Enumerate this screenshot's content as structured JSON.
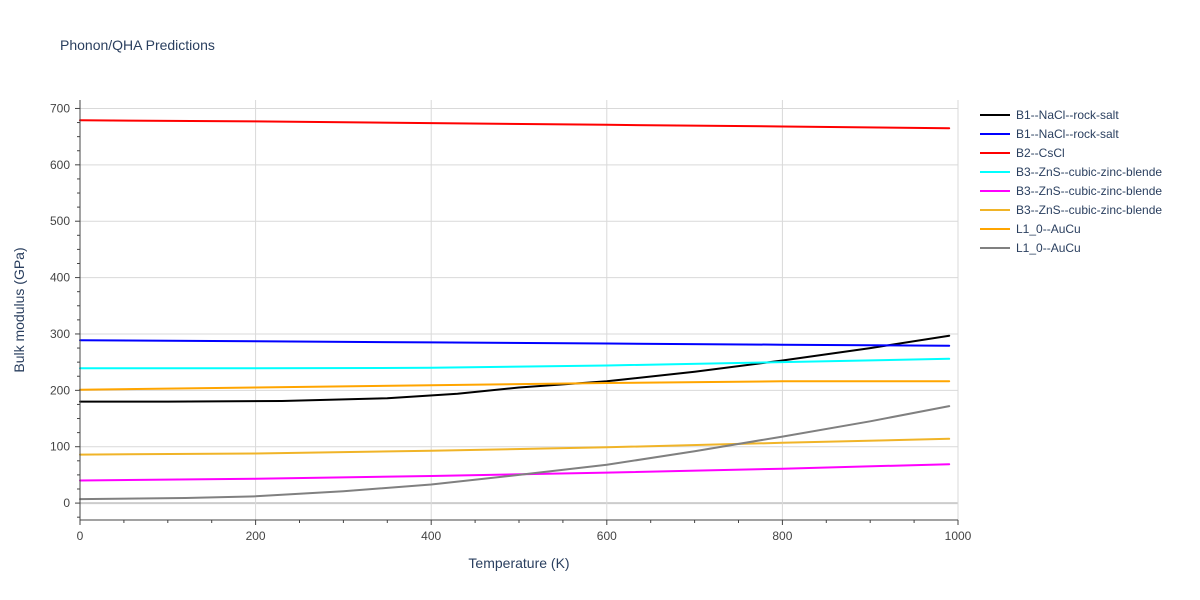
{
  "chart_data": {
    "type": "line",
    "title": "Phonon/QHA Predictions",
    "xlabel": "Temperature (K)",
    "ylabel": "Bulk modulus (GPa)",
    "xlim": [
      0,
      1000
    ],
    "ylim": [
      -30,
      715
    ],
    "x_ticks": [
      0,
      200,
      400,
      600,
      800,
      1000
    ],
    "y_ticks": [
      0,
      100,
      200,
      300,
      400,
      500,
      600,
      700
    ],
    "grid": true,
    "legend_position": "top-right",
    "series": [
      {
        "name": "B1--NaCl--rock-salt",
        "color": "#000000",
        "x": [
          0,
          100,
          230,
          350,
          430,
          500,
          600,
          700,
          800,
          900,
          990
        ],
        "y": [
          180,
          180,
          181,
          186,
          194,
          205,
          216,
          233,
          253,
          275,
          297
        ]
      },
      {
        "name": "B1--NaCl--rock-salt",
        "color": "#0000ff",
        "x": [
          0,
          200,
          400,
          600,
          800,
          990
        ],
        "y": [
          289,
          287,
          285,
          283,
          281,
          279
        ]
      },
      {
        "name": "B2--CsCl",
        "color": "#ff0000",
        "x": [
          0,
          200,
          400,
          600,
          800,
          990
        ],
        "y": [
          679,
          677,
          674,
          671,
          668,
          665
        ]
      },
      {
        "name": "B3--ZnS--cubic-zinc-blende",
        "color": "#00ffff",
        "x": [
          0,
          200,
          400,
          600,
          800,
          990
        ],
        "y": [
          239,
          239,
          240,
          244,
          250,
          256
        ]
      },
      {
        "name": "B3--ZnS--cubic-zinc-blende",
        "color": "#ff00ff",
        "x": [
          0,
          200,
          400,
          600,
          800,
          990
        ],
        "y": [
          40,
          43,
          48,
          54,
          61,
          69
        ]
      },
      {
        "name": "B3--ZnS--cubic-zinc-blende",
        "color": "#f0b428",
        "x": [
          0,
          200,
          400,
          600,
          800,
          990
        ],
        "y": [
          86,
          88,
          93,
          99,
          107,
          114
        ]
      },
      {
        "name": "L1_0--AuCu",
        "color": "#ffa500",
        "x": [
          0,
          200,
          400,
          600,
          800,
          990
        ],
        "y": [
          201,
          205,
          209,
          213,
          216,
          216
        ]
      },
      {
        "name": "L1_0--AuCu",
        "color": "#808080",
        "x": [
          0,
          120,
          200,
          300,
          400,
          500,
          600,
          700,
          800,
          900,
          990
        ],
        "y": [
          7,
          9,
          12,
          21,
          33,
          50,
          68,
          92,
          118,
          145,
          172
        ]
      }
    ]
  }
}
